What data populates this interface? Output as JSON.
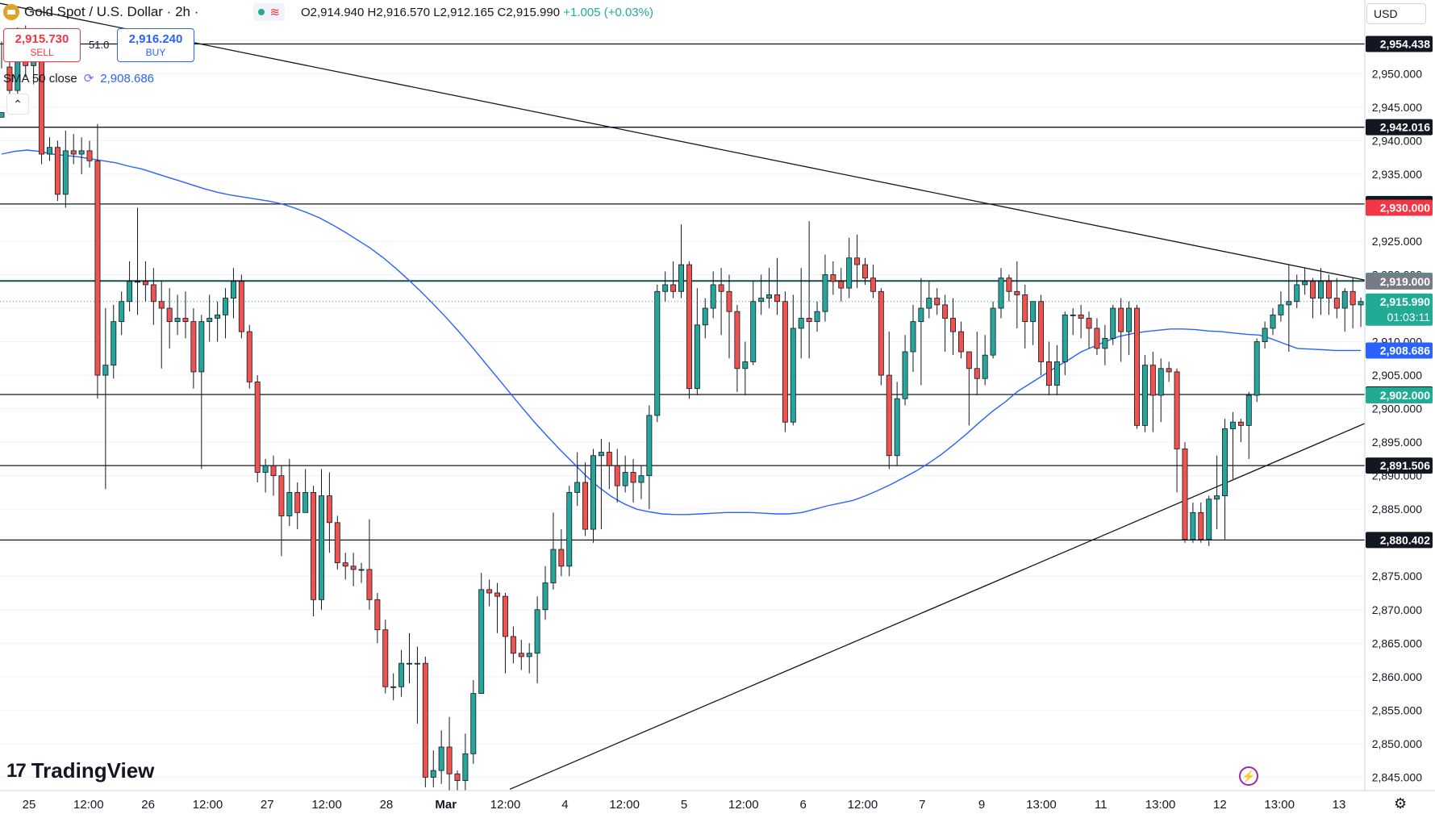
{
  "header": {
    "symbol_title": "Gold Spot / U.S. Dollar · 2h ·",
    "ohlc": "O2,914.940  H2,916.570  L2,912.165  C2,915.990",
    "change": "+1.005 (+0.03%)",
    "status_icons": [
      "market-open-dot",
      "wave-icon"
    ]
  },
  "trade": {
    "sell_price": "2,915.730",
    "sell_label": "SELL",
    "spread": "51.0",
    "buy_price": "2,916.240",
    "buy_label": "BUY"
  },
  "indicator": {
    "label": "SMA 50 close",
    "value": "2,908.686"
  },
  "toolbar": {
    "currency": "USD",
    "logo_text": "TradingView"
  },
  "colors": {
    "up": "#22ab94",
    "down": "#ef5350",
    "sma": "#2962ff",
    "grid": "#f0f3fa",
    "target_zone": "#e1f3ef",
    "stop_zone": "#fde2e2"
  },
  "chart_data": {
    "type": "candlestick",
    "title": "Gold Spot / U.S. Dollar · 2h",
    "ylim": [
      2843,
      2961
    ],
    "y_ticks": [
      2845,
      2850,
      2855,
      2860,
      2865,
      2870,
      2875,
      2880,
      2885,
      2890,
      2895,
      2900,
      2905,
      2910,
      2915,
      2920,
      2925,
      2930,
      2935,
      2940,
      2945,
      2950,
      2955
    ],
    "x_labels": [
      "25",
      "12:00",
      "26",
      "12:00",
      "27",
      "12:00",
      "28",
      "Mar",
      "12:00",
      "4",
      "12:00",
      "5",
      "12:00",
      "6",
      "12:00",
      "7",
      "9",
      "13:00",
      "11",
      "13:00",
      "12",
      "13:00",
      "13"
    ],
    "horizontal_levels": [
      2954.438,
      2942.016,
      2930.556,
      2919.097,
      2902.122,
      2891.506,
      2880.402
    ],
    "trendlines": [
      {
        "name": "resistance",
        "from": [
          0,
          2960.5
        ],
        "to": [
          1692,
          2919.2
        ]
      },
      {
        "name": "support",
        "from": [
          632,
          2843.2
        ],
        "to": [
          1692,
          2897.8
        ]
      }
    ],
    "position": {
      "entry": 2919.0,
      "stop": 2930.0,
      "target": 2902.0,
      "start_bar": 195
    },
    "price_labels": [
      {
        "value": "2,954.438",
        "kind": "line"
      },
      {
        "value": "2,942.016",
        "kind": "line"
      },
      {
        "value": "2,930.556",
        "kind": "line"
      },
      {
        "value": "2,930.000",
        "kind": "stop"
      },
      {
        "value": "2,919.097",
        "kind": "level-green"
      },
      {
        "value": "2,919.000",
        "kind": "entry"
      },
      {
        "value": "2,915.990",
        "kind": "current",
        "countdown": "01:03:11"
      },
      {
        "value": "2,908.686",
        "kind": "sma"
      },
      {
        "value": "2,902.122",
        "kind": "line"
      },
      {
        "value": "2,902.000",
        "kind": "target"
      },
      {
        "value": "2,891.506",
        "kind": "line"
      },
      {
        "value": "2,880.402",
        "kind": "line"
      }
    ],
    "candles": [
      [
        2943.5,
        2944.2,
        2950.8,
        2954.8
      ],
      [
        2951.0,
        2947.5,
        2956.5,
        2944.2
      ],
      [
        2947.5,
        2955.8,
        2956.9,
        2946.0
      ],
      [
        2955.8,
        2951.2,
        2957.2,
        2949.5
      ],
      [
        2951.2,
        2952.0,
        2956.0,
        2948.4
      ],
      [
        2952.0,
        2938.0,
        2952.5,
        2936.5
      ],
      [
        2938.0,
        2939.0,
        2940.5,
        2937.0
      ],
      [
        2939.0,
        2932.0,
        2940.0,
        2931.0
      ],
      [
        2932.0,
        2938.5,
        2941.5,
        2930.0
      ],
      [
        2938.5,
        2938.0,
        2941.0,
        2936.5
      ],
      [
        2938.0,
        2938.5,
        2940.5,
        2935.0
      ],
      [
        2938.5,
        2937.0,
        2940.0,
        2936.0
      ],
      [
        2937.0,
        2905.0,
        2942.5,
        2901.5
      ],
      [
        2905.0,
        2906.5,
        2915.0,
        2888.0
      ],
      [
        2906.5,
        2913.0,
        2915.5,
        2904.5
      ],
      [
        2913.0,
        2916.0,
        2917.5,
        2911.0
      ],
      [
        2916.0,
        2919.0,
        2922.0,
        2914.5
      ],
      [
        2919.0,
        2919.0,
        2930.0,
        2914.0
      ],
      [
        2919.0,
        2918.5,
        2922.0,
        2916.0
      ],
      [
        2918.5,
        2916.0,
        2921.0,
        2912.5
      ],
      [
        2916.0,
        2915.0,
        2919.0,
        2906.0
      ],
      [
        2915.0,
        2913.0,
        2918.0,
        2909.0
      ],
      [
        2913.0,
        2913.5,
        2917.0,
        2911.0
      ],
      [
        2913.5,
        2913.0,
        2917.5,
        2910.5
      ],
      [
        2913.0,
        2905.5,
        2915.0,
        2903.0
      ],
      [
        2905.5,
        2913.0,
        2914.0,
        2891.0
      ],
      [
        2913.0,
        2913.5,
        2917.0,
        2910.0
      ],
      [
        2913.5,
        2914.0,
        2916.0,
        2910.0
      ],
      [
        2914.0,
        2916.5,
        2918.0,
        2910.5
      ],
      [
        2916.5,
        2919.0,
        2921.0,
        2913.5
      ],
      [
        2919.0,
        2911.5,
        2920.0,
        2910.5
      ],
      [
        2911.5,
        2904.0,
        2912.5,
        2903.0
      ],
      [
        2904.0,
        2890.5,
        2905.0,
        2889.0
      ],
      [
        2890.5,
        2891.5,
        2892.5,
        2887.5
      ],
      [
        2891.5,
        2890.0,
        2893.0,
        2887.0
      ],
      [
        2890.0,
        2884.0,
        2891.5,
        2878.0
      ],
      [
        2884.0,
        2887.5,
        2892.5,
        2882.5
      ],
      [
        2887.5,
        2884.5,
        2889.0,
        2882.0
      ],
      [
        2884.5,
        2887.5,
        2891.0,
        2885.0
      ],
      [
        2887.5,
        2871.5,
        2888.5,
        2869.0
      ],
      [
        2871.5,
        2887.0,
        2891.0,
        2870.0
      ],
      [
        2887.0,
        2883.0,
        2890.5,
        2878.5
      ],
      [
        2883.0,
        2877.0,
        2884.0,
        2876.0
      ],
      [
        2877.0,
        2876.5,
        2878.5,
        2874.5
      ],
      [
        2876.5,
        2876.0,
        2878.5,
        2873.5
      ],
      [
        2876.0,
        2876.0,
        2877.0,
        2874.0
      ],
      [
        2876.0,
        2871.5,
        2883.5,
        2870.0
      ],
      [
        2871.5,
        2867.0,
        2872.5,
        2865.0
      ],
      [
        2867.0,
        2858.5,
        2868.5,
        2857.5
      ],
      [
        2858.5,
        2858.5,
        2860.5,
        2856.5
      ],
      [
        2858.5,
        2862.0,
        2864.0,
        2857.0
      ],
      [
        2862.0,
        2862.0,
        2866.5,
        2859.0
      ],
      [
        2862.0,
        2862.0,
        2864.5,
        2853.0
      ],
      [
        2862.0,
        2845.0,
        2863.0,
        2843.5
      ],
      [
        2845.0,
        2846.0,
        2849.0,
        2843.5
      ],
      [
        2846.0,
        2849.5,
        2852.0,
        2844.0
      ],
      [
        2849.5,
        2845.5,
        2854.0,
        2843.0
      ],
      [
        2845.5,
        2844.5,
        2846.0,
        2843.0
      ],
      [
        2844.5,
        2848.5,
        2851.5,
        2843.0
      ],
      [
        2848.5,
        2857.5,
        2859.5,
        2847.0
      ],
      [
        2857.5,
        2873.0,
        2875.5,
        2866.0
      ],
      [
        2873.0,
        2872.5,
        2874.5,
        2870.5
      ],
      [
        2872.5,
        2872.0,
        2874.0,
        2866.5
      ],
      [
        2872.0,
        2866.0,
        2872.5,
        2860.5
      ],
      [
        2866.0,
        2863.5,
        2867.5,
        2862.0
      ],
      [
        2863.5,
        2863.0,
        2865.5,
        2861.0
      ],
      [
        2863.0,
        2863.5,
        2865.0,
        2860.5
      ],
      [
        2863.5,
        2870.0,
        2872.0,
        2859.0
      ],
      [
        2870.0,
        2874.0,
        2876.5,
        2868.5
      ],
      [
        2874.0,
        2879.0,
        2884.5,
        2873.0
      ],
      [
        2879.0,
        2876.5,
        2882.0,
        2875.0
      ],
      [
        2876.5,
        2887.5,
        2888.5,
        2875.0
      ],
      [
        2887.5,
        2889.0,
        2893.5,
        2885.5
      ],
      [
        2889.0,
        2882.0,
        2892.0,
        2881.0
      ],
      [
        2882.0,
        2893.0,
        2894.0,
        2880.0
      ],
      [
        2893.0,
        2893.5,
        2895.5,
        2882.0
      ],
      [
        2893.5,
        2891.5,
        2895.0,
        2888.0
      ],
      [
        2891.5,
        2888.5,
        2894.0,
        2886.0
      ],
      [
        2888.5,
        2890.5,
        2893.0,
        2887.5
      ],
      [
        2890.5,
        2889.0,
        2892.5,
        2886.0
      ],
      [
        2889.0,
        2890.0,
        2891.5,
        2886.5
      ],
      [
        2890.0,
        2899.0,
        2900.5,
        2885.0
      ],
      [
        2899.0,
        2917.5,
        2918.5,
        2898.0
      ],
      [
        2917.5,
        2918.5,
        2920.5,
        2916.0
      ],
      [
        2918.5,
        2917.5,
        2922.0,
        2916.5
      ],
      [
        2917.5,
        2921.5,
        2927.5,
        2916.5
      ],
      [
        2921.5,
        2903.0,
        2922.0,
        2901.5
      ],
      [
        2903.0,
        2912.5,
        2918.0,
        2902.0
      ],
      [
        2912.5,
        2915.0,
        2916.5,
        2910.5
      ],
      [
        2915.0,
        2918.5,
        2920.5,
        2913.5
      ],
      [
        2918.5,
        2917.5,
        2921.0,
        2911.0
      ],
      [
        2917.5,
        2914.5,
        2920.0,
        2907.5
      ],
      [
        2914.5,
        2906.0,
        2915.5,
        2902.5
      ],
      [
        2906.0,
        2907.0,
        2910.0,
        2902.0
      ],
      [
        2907.0,
        2916.0,
        2919.0,
        2906.5
      ],
      [
        2916.0,
        2916.5,
        2920.0,
        2914.0
      ],
      [
        2916.5,
        2917.0,
        2921.0,
        2915.0
      ],
      [
        2917.0,
        2916.0,
        2922.5,
        2914.0
      ],
      [
        2916.0,
        2898.0,
        2917.5,
        2896.5
      ],
      [
        2898.0,
        2912.0,
        2917.0,
        2897.5
      ],
      [
        2912.0,
        2913.5,
        2921.0,
        2907.5
      ],
      [
        2913.5,
        2913.0,
        2928.0,
        2907.5
      ],
      [
        2913.0,
        2914.5,
        2916.0,
        2911.5
      ],
      [
        2914.5,
        2920.0,
        2923.0,
        2913.0
      ],
      [
        2920.0,
        2919.0,
        2922.0,
        2917.0
      ],
      [
        2919.0,
        2918.0,
        2921.0,
        2916.0
      ],
      [
        2918.0,
        2922.5,
        2925.5,
        2916.5
      ],
      [
        2922.5,
        2921.5,
        2926.0,
        2918.0
      ],
      [
        2921.5,
        2919.5,
        2922.5,
        2918.5
      ],
      [
        2919.5,
        2917.5,
        2921.5,
        2916.5
      ],
      [
        2917.5,
        2905.0,
        2918.0,
        2903.5
      ],
      [
        2905.0,
        2893.0,
        2911.5,
        2891.0
      ],
      [
        2893.0,
        2901.5,
        2904.0,
        2891.5
      ],
      [
        2901.5,
        2908.5,
        2911.0,
        2900.5
      ],
      [
        2908.5,
        2913.0,
        2915.5,
        2905.5
      ],
      [
        2913.0,
        2915.0,
        2919.5,
        2903.5
      ],
      [
        2915.0,
        2916.5,
        2919.0,
        2913.5
      ],
      [
        2916.5,
        2915.5,
        2918.0,
        2914.0
      ],
      [
        2915.5,
        2913.5,
        2917.0,
        2908.5
      ],
      [
        2913.5,
        2911.5,
        2916.5,
        2908.0
      ],
      [
        2911.5,
        2908.5,
        2913.0,
        2907.5
      ],
      [
        2908.5,
        2906.0,
        2908.5,
        2897.5
      ],
      [
        2906.0,
        2904.5,
        2911.5,
        2902.0
      ],
      [
        2904.5,
        2908.0,
        2911.0,
        2903.5
      ],
      [
        2908.0,
        2915.0,
        2916.0,
        2907.5
      ],
      [
        2915.0,
        2919.5,
        2921.0,
        2913.5
      ],
      [
        2919.5,
        2917.5,
        2920.0,
        2916.0
      ],
      [
        2917.5,
        2917.0,
        2922.0,
        2912.0
      ],
      [
        2917.0,
        2913.0,
        2918.5,
        2909.0
      ],
      [
        2913.0,
        2916.0,
        2916.0,
        2909.5
      ],
      [
        2916.0,
        2907.0,
        2917.0,
        2905.0
      ],
      [
        2907.0,
        2903.5,
        2910.0,
        2902.0
      ],
      [
        2903.5,
        2907.0,
        2909.5,
        2902.0
      ],
      [
        2907.0,
        2914.0,
        2914.5,
        2905.0
      ],
      [
        2914.0,
        2914.0,
        2915.0,
        2911.0
      ],
      [
        2914.0,
        2913.5,
        2915.5,
        2910.5
      ],
      [
        2913.5,
        2912.0,
        2914.5,
        2909.0
      ],
      [
        2912.0,
        2909.0,
        2913.5,
        2908.0
      ],
      [
        2909.0,
        2910.5,
        2912.5,
        2906.5
      ],
      [
        2910.5,
        2915.0,
        2915.5,
        2909.5
      ],
      [
        2915.0,
        2911.5,
        2916.5,
        2907.0
      ],
      [
        2911.5,
        2915.0,
        2916.0,
        2908.0
      ],
      [
        2915.0,
        2897.5,
        2915.5,
        2897.0
      ],
      [
        2897.5,
        2906.5,
        2908.0,
        2896.5
      ],
      [
        2906.5,
        2902.0,
        2908.5,
        2896.5
      ],
      [
        2902.0,
        2906.0,
        2907.5,
        2898.0
      ],
      [
        2906.0,
        2905.5,
        2907.0,
        2904.0
      ],
      [
        2905.5,
        2894.0,
        2906.0,
        2887.5
      ],
      [
        2894.0,
        2880.5,
        2895.0,
        2880.0
      ],
      [
        2880.5,
        2884.5,
        2886.0,
        2880.0
      ],
      [
        2884.5,
        2880.5,
        2886.0,
        2880.0
      ],
      [
        2880.5,
        2886.5,
        2887.0,
        2879.5
      ],
      [
        2886.5,
        2887.0,
        2893.0,
        2882.0
      ],
      [
        2887.0,
        2897.0,
        2898.5,
        2880.5
      ],
      [
        2897.0,
        2898.0,
        2899.5,
        2889.5
      ],
      [
        2898.0,
        2897.5,
        2898.5,
        2895.0
      ],
      [
        2897.5,
        2902.0,
        2902.5,
        2892.5
      ],
      [
        2902.0,
        2910.0,
        2910.5,
        2901.0
      ],
      [
        2910.0,
        2912.0,
        2913.0,
        2909.0
      ],
      [
        2912.0,
        2914.0,
        2915.0,
        2911.0
      ],
      [
        2914.0,
        2915.5,
        2917.5,
        2913.0
      ],
      [
        2915.5,
        2916.0,
        2921.5,
        2908.5
      ],
      [
        2916.0,
        2918.5,
        2920.0,
        2915.0
      ],
      [
        2918.5,
        2919.0,
        2921.0,
        2917.0
      ],
      [
        2919.0,
        2916.5,
        2919.5,
        2913.5
      ],
      [
        2916.5,
        2919.0,
        2921.0,
        2914.0
      ],
      [
        2919.0,
        2916.5,
        2920.0,
        2914.0
      ],
      [
        2916.5,
        2915.0,
        2919.5,
        2913.5
      ],
      [
        2915.0,
        2917.5,
        2918.0,
        2911.5
      ],
      [
        2917.5,
        2915.5,
        2919.5,
        2912.0
      ],
      [
        2915.5,
        2916.0,
        2916.6,
        2912.2
      ]
    ],
    "sma_50": [
      2938.0,
      2938.4,
      2938.6,
      2938.4,
      2938.0,
      2937.8,
      2937.6,
      2937.3,
      2937.0,
      2936.7,
      2936.2,
      2935.8,
      2935.2,
      2934.6,
      2934.0,
      2933.4,
      2932.8,
      2932.3,
      2931.9,
      2931.6,
      2931.3,
      2931.0,
      2930.6,
      2930.0,
      2929.3,
      2928.5,
      2927.5,
      2926.4,
      2925.2,
      2924.0,
      2922.6,
      2921.0,
      2919.3,
      2917.5,
      2915.6,
      2913.6,
      2911.5,
      2909.3,
      2907.0,
      2904.7,
      2902.4,
      2900.1,
      2897.9,
      2895.8,
      2893.8,
      2891.9,
      2890.0,
      2888.3,
      2886.9,
      2885.8,
      2885.0,
      2884.6,
      2884.3,
      2884.2,
      2884.2,
      2884.3,
      2884.4,
      2884.5,
      2884.5,
      2884.5,
      2884.4,
      2884.3,
      2884.3,
      2884.5,
      2885.0,
      2885.5,
      2885.9,
      2886.3,
      2887.0,
      2887.8,
      2888.7,
      2889.7,
      2890.7,
      2891.9,
      2893.2,
      2894.7,
      2896.3,
      2898.0,
      2899.6,
      2901.0,
      2902.6,
      2903.8,
      2905.0,
      2906.2,
      2907.3,
      2908.5,
      2909.3,
      2910.1,
      2910.8,
      2911.2,
      2911.5,
      2911.7,
      2911.9,
      2911.9,
      2911.8,
      2911.6,
      2911.5,
      2911.3,
      2911.1,
      2911.0,
      2910.4,
      2909.7,
      2909.0,
      2908.9,
      2908.8,
      2908.7,
      2908.7,
      2908.7
    ],
    "sma_start_bar": 0
  }
}
